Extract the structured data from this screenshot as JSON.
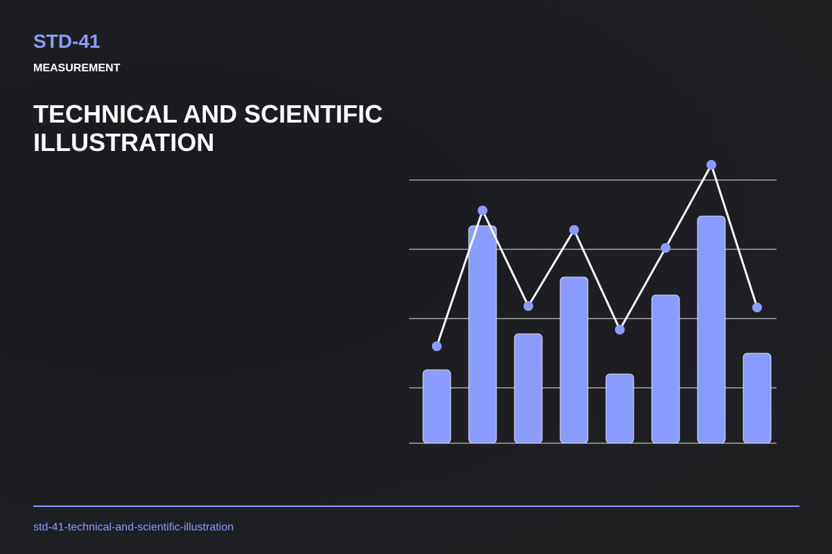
{
  "header": {
    "code": "STD-41",
    "category": "MEASUREMENT",
    "title": "TECHNICAL AND SCIENTIFIC ILLUSTRATION"
  },
  "chart_data": {
    "type": "bar",
    "categories": [
      null,
      null,
      null,
      null,
      null,
      null,
      null,
      null
    ],
    "series": [
      {
        "type": "bar",
        "color": "#8b9cff",
        "values": [
          26.5,
          78.5,
          39.5,
          60,
          25,
          53.5,
          82,
          32.5
        ]
      },
      {
        "type": "line",
        "color": "#ffffff",
        "marker_color": "#8b9cff",
        "values": [
          35,
          84,
          49.5,
          77,
          41,
          70.5,
          100.5,
          49
        ]
      }
    ],
    "ylim": [
      0,
      100
    ],
    "yticks": [
      0,
      20,
      45,
      70,
      95
    ],
    "grid": true
  },
  "footer": {
    "slug": "std-41-technical-and-scientific-illustration"
  }
}
